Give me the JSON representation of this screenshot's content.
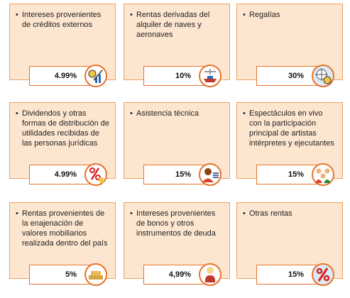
{
  "cards": [
    {
      "label": "Intereses provenientes de créditos externos",
      "rate": "4.99%"
    },
    {
      "label": "Rentas derivadas del alquiler de naves y aeronaves",
      "rate": "10%"
    },
    {
      "label": "Regalías",
      "rate": "30%"
    },
    {
      "label": "Dividendos y otras formas de distribución de utilidades recibidas de las personas jurídicas",
      "rate": "4.99%"
    },
    {
      "label": "Asistencia técnica",
      "rate": "15%"
    },
    {
      "label": "Espectáculos en vivo con la participación principal de artistas intérpretes y ejecutantes",
      "rate": "15%"
    },
    {
      "label": "Rentas provenientes de la enajenación de valores mobiliarios realizada dentro del país",
      "rate": "5%"
    },
    {
      "label": "Intereses provenientes de bonos y otros instrumentos de deuda",
      "rate": "4,99%"
    },
    {
      "label": "Otras rentas",
      "rate": "15%"
    }
  ]
}
